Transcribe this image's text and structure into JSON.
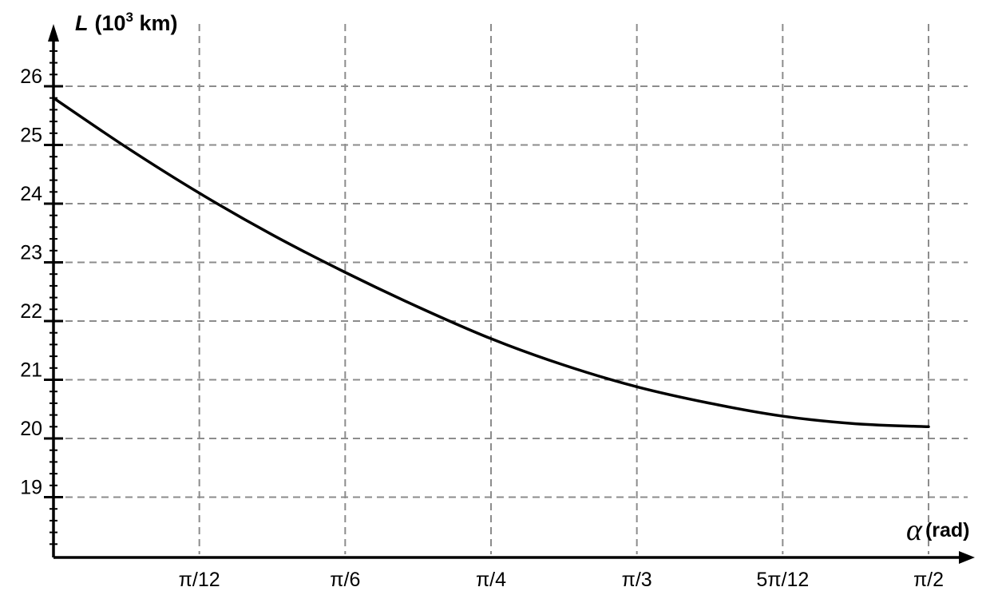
{
  "chart_data": {
    "type": "line",
    "xlabel_symbol": "α",
    "xlabel_unit": "(rad)",
    "ylabel_symbol": "L",
    "ylabel_unit_prefix": "(10",
    "ylabel_unit_exp": "3",
    "ylabel_unit_suffix": " km)",
    "xlim": [
      0,
      1.5708
    ],
    "ylim": [
      18.1,
      27.0
    ],
    "x_ticks": [
      {
        "value": 0.2618,
        "label": "π/12"
      },
      {
        "value": 0.5236,
        "label": "π/6"
      },
      {
        "value": 0.7854,
        "label": "π/4"
      },
      {
        "value": 1.0472,
        "label": "π/3"
      },
      {
        "value": 1.309,
        "label": "5π/12"
      },
      {
        "value": 1.5708,
        "label": "π/2"
      }
    ],
    "y_ticks": [
      {
        "value": 19,
        "label": "19"
      },
      {
        "value": 20,
        "label": "20"
      },
      {
        "value": 21,
        "label": "21"
      },
      {
        "value": 22,
        "label": "22"
      },
      {
        "value": 23,
        "label": "23"
      },
      {
        "value": 24,
        "label": "24"
      },
      {
        "value": 25,
        "label": "25"
      },
      {
        "value": 26,
        "label": "26"
      }
    ],
    "y_minor_step": 0.2,
    "grid": true,
    "series": [
      {
        "x": [
          0,
          0.1309,
          0.2618,
          0.3927,
          0.5236,
          0.6545,
          0.7854,
          0.9163,
          1.0472,
          1.1781,
          1.309,
          1.4399,
          1.5708
        ],
        "y": [
          25.8,
          24.96,
          24.18,
          23.47,
          22.83,
          22.24,
          21.7,
          21.25,
          20.88,
          20.6,
          20.38,
          20.25,
          20.2
        ]
      }
    ]
  }
}
